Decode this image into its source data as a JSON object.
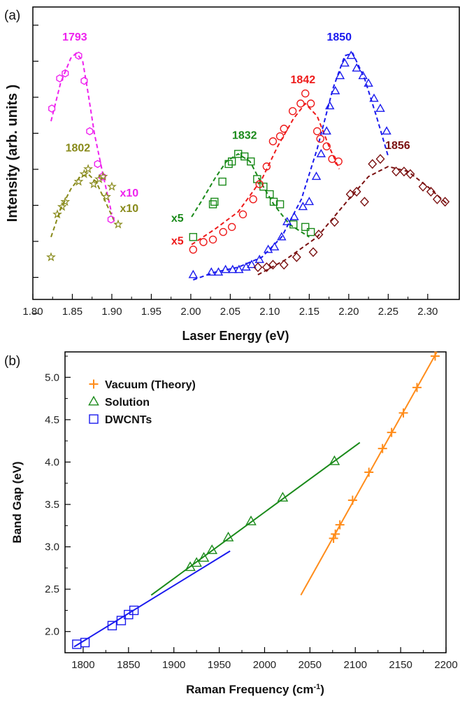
{
  "chart_data": [
    {
      "panel_label": "(a)",
      "type": "scatter",
      "xlabel": "Laser Energy (eV)",
      "ylabel": "Intensity (arb. units )",
      "xlim": [
        1.8,
        2.34
      ],
      "ylim": [
        0,
        1
      ],
      "xticks": [
        "1.80",
        "1.85",
        "1.90",
        "1.95",
        "2.00",
        "2.05",
        "2.10",
        "2.15",
        "2.20",
        "2.25",
        "2.30"
      ],
      "y_tick_labels": "none",
      "series": [
        {
          "name": "1793",
          "color": "#ee22ee",
          "marker": "hexagon",
          "points": [
            [
              1.824,
              0.68
            ],
            [
              1.834,
              0.8
            ],
            [
              1.841,
              0.82
            ],
            [
              1.858,
              0.89
            ],
            [
              1.865,
              0.79
            ],
            [
              1.872,
              0.59
            ],
            [
              1.882,
              0.46
            ],
            [
              1.888,
              0.41
            ],
            [
              1.899,
              0.24
            ]
          ],
          "fit": [
            [
              1.823,
              0.63
            ],
            [
              1.835,
              0.78
            ],
            [
              1.848,
              0.88
            ],
            [
              1.855,
              0.9
            ],
            [
              1.863,
              0.87
            ],
            [
              1.87,
              0.74
            ],
            [
              1.878,
              0.58
            ],
            [
              1.888,
              0.43
            ],
            [
              1.9,
              0.26
            ]
          ]
        },
        {
          "name": "1802",
          "color": "#888a1a",
          "marker": "star",
          "points": [
            [
              1.823,
              0.09
            ],
            [
              1.831,
              0.26
            ],
            [
              1.837,
              0.29
            ],
            [
              1.841,
              0.31
            ],
            [
              1.858,
              0.39
            ],
            [
              1.865,
              0.42
            ],
            [
              1.87,
              0.44
            ],
            [
              1.877,
              0.38
            ],
            [
              1.884,
              0.4
            ],
            [
              1.889,
              0.41
            ],
            [
              1.893,
              0.33
            ],
            [
              1.9,
              0.37
            ],
            [
              1.908,
              0.22
            ]
          ],
          "fit": [
            [
              1.823,
              0.17
            ],
            [
              1.835,
              0.28
            ],
            [
              1.848,
              0.36
            ],
            [
              1.86,
              0.41
            ],
            [
              1.87,
              0.42
            ],
            [
              1.88,
              0.39
            ],
            [
              1.892,
              0.31
            ],
            [
              1.905,
              0.22
            ]
          ]
        },
        {
          "name": "1832",
          "color": "#1a8a1a",
          "marker": "square",
          "points": [
            [
              2.003,
              0.17
            ],
            [
              2.028,
              0.3
            ],
            [
              2.03,
              0.31
            ],
            [
              2.04,
              0.39
            ],
            [
              2.048,
              0.46
            ],
            [
              2.052,
              0.47
            ],
            [
              2.06,
              0.5
            ],
            [
              2.068,
              0.49
            ],
            [
              2.076,
              0.47
            ],
            [
              2.084,
              0.4
            ],
            [
              2.092,
              0.37
            ],
            [
              2.1,
              0.34
            ],
            [
              2.105,
              0.31
            ],
            [
              2.113,
              0.3
            ],
            [
              2.13,
              0.22
            ],
            [
              2.145,
              0.21
            ],
            [
              2.152,
              0.19
            ]
          ],
          "fit": [
            [
              2.001,
              0.25
            ],
            [
              2.015,
              0.32
            ],
            [
              2.03,
              0.4
            ],
            [
              2.045,
              0.47
            ],
            [
              2.06,
              0.5
            ],
            [
              2.075,
              0.47
            ],
            [
              2.09,
              0.38
            ],
            [
              2.105,
              0.3
            ],
            [
              2.125,
              0.22
            ],
            [
              2.15,
              0.17
            ]
          ]
        },
        {
          "name": "1842",
          "color": "#ee1a1a",
          "marker": "circle",
          "points": [
            [
              2.003,
              0.12
            ],
            [
              2.016,
              0.15
            ],
            [
              2.028,
              0.16
            ],
            [
              2.041,
              0.19
            ],
            [
              2.052,
              0.21
            ],
            [
              2.066,
              0.26
            ],
            [
              2.079,
              0.32
            ],
            [
              2.087,
              0.38
            ],
            [
              2.096,
              0.45
            ],
            [
              2.104,
              0.55
            ],
            [
              2.113,
              0.57
            ],
            [
              2.118,
              0.6
            ],
            [
              2.129,
              0.67
            ],
            [
              2.139,
              0.7
            ],
            [
              2.145,
              0.74
            ],
            [
              2.152,
              0.7
            ],
            [
              2.16,
              0.59
            ],
            [
              2.164,
              0.56
            ],
            [
              2.172,
              0.53
            ],
            [
              2.179,
              0.48
            ],
            [
              2.187,
              0.47
            ]
          ],
          "fit": [
            [
              2.001,
              0.14
            ],
            [
              2.03,
              0.2
            ],
            [
              2.06,
              0.27
            ],
            [
              2.09,
              0.4
            ],
            [
              2.11,
              0.53
            ],
            [
              2.13,
              0.64
            ],
            [
              2.145,
              0.7
            ],
            [
              2.16,
              0.65
            ],
            [
              2.175,
              0.53
            ],
            [
              2.188,
              0.44
            ]
          ]
        },
        {
          "name": "1850",
          "color": "#1a1aee",
          "marker": "triangle",
          "points": [
            [
              2.003,
              0.02
            ],
            [
              2.026,
              0.03
            ],
            [
              2.035,
              0.03
            ],
            [
              2.044,
              0.04
            ],
            [
              2.053,
              0.04
            ],
            [
              2.061,
              0.04
            ],
            [
              2.07,
              0.05
            ],
            [
              2.077,
              0.06
            ],
            [
              2.087,
              0.08
            ],
            [
              2.098,
              0.12
            ],
            [
              2.106,
              0.13
            ],
            [
              2.115,
              0.17
            ],
            [
              2.122,
              0.23
            ],
            [
              2.131,
              0.25
            ],
            [
              2.142,
              0.29
            ],
            [
              2.15,
              0.31
            ],
            [
              2.159,
              0.41
            ],
            [
              2.165,
              0.5
            ],
            [
              2.172,
              0.59
            ],
            [
              2.176,
              0.69
            ],
            [
              2.183,
              0.75
            ],
            [
              2.189,
              0.81
            ],
            [
              2.195,
              0.86
            ],
            [
              2.203,
              0.89
            ],
            [
              2.21,
              0.84
            ],
            [
              2.218,
              0.81
            ],
            [
              2.225,
              0.78
            ],
            [
              2.232,
              0.72
            ],
            [
              2.24,
              0.68
            ],
            [
              2.248,
              0.59
            ]
          ],
          "fit": [
            [
              2.003,
              0.0
            ],
            [
              2.03,
              0.03
            ],
            [
              2.06,
              0.05
            ],
            [
              2.09,
              0.09
            ],
            [
              2.115,
              0.17
            ],
            [
              2.14,
              0.32
            ],
            [
              2.16,
              0.52
            ],
            [
              2.18,
              0.76
            ],
            [
              2.195,
              0.89
            ],
            [
              2.205,
              0.9
            ],
            [
              2.22,
              0.8
            ],
            [
              2.235,
              0.65
            ],
            [
              2.25,
              0.49
            ]
          ]
        },
        {
          "name": "1856",
          "color": "#7a1010",
          "marker": "diamond",
          "points": [
            [
              2.085,
              0.05
            ],
            [
              2.096,
              0.05
            ],
            [
              2.104,
              0.06
            ],
            [
              2.118,
              0.06
            ],
            [
              2.134,
              0.09
            ],
            [
              2.155,
              0.11
            ],
            [
              2.162,
              0.18
            ],
            [
              2.182,
              0.23
            ],
            [
              2.202,
              0.34
            ],
            [
              2.21,
              0.35
            ],
            [
              2.22,
              0.31
            ],
            [
              2.23,
              0.46
            ],
            [
              2.24,
              0.48
            ],
            [
              2.26,
              0.43
            ],
            [
              2.27,
              0.43
            ],
            [
              2.278,
              0.42
            ],
            [
              2.294,
              0.37
            ],
            [
              2.304,
              0.35
            ],
            [
              2.312,
              0.32
            ],
            [
              2.322,
              0.31
            ]
          ],
          "fit": [
            [
              2.085,
              0.02
            ],
            [
              2.12,
              0.08
            ],
            [
              2.16,
              0.17
            ],
            [
              2.2,
              0.32
            ],
            [
              2.225,
              0.41
            ],
            [
              2.25,
              0.45
            ],
            [
              2.275,
              0.43
            ],
            [
              2.3,
              0.37
            ],
            [
              2.325,
              0.3
            ]
          ]
        }
      ],
      "annotations": [
        {
          "text": "1793",
          "x": 1.853,
          "y": 0.95,
          "color": "#ee22ee"
        },
        {
          "text": "1802",
          "x": 1.857,
          "y": 0.51,
          "color": "#888a1a"
        },
        {
          "text": "1832",
          "x": 2.068,
          "y": 0.56,
          "color": "#1a8a1a"
        },
        {
          "text": "1842",
          "x": 2.142,
          "y": 0.78,
          "color": "#ee1a1a"
        },
        {
          "text": "1850",
          "x": 2.188,
          "y": 0.95,
          "color": "#1a1aee"
        },
        {
          "text": "1856",
          "x": 2.262,
          "y": 0.52,
          "color": "#7a1010"
        },
        {
          "text": "x10",
          "x": 1.922,
          "y": 0.33,
          "color": "#ee22ee"
        },
        {
          "text": "x10",
          "x": 1.922,
          "y": 0.27,
          "color": "#888a1a"
        },
        {
          "text": "x5",
          "x": 1.983,
          "y": 0.23,
          "color": "#1a8a1a"
        },
        {
          "text": "x5",
          "x": 1.983,
          "y": 0.14,
          "color": "#ee1a1a"
        }
      ]
    },
    {
      "panel_label": "(b)",
      "type": "scatter",
      "xlabel": "Raman Frequency (cm",
      "xlabel_sup": "-1",
      "xlabel_end": ")",
      "ylabel": "Band Gap (eV)",
      "xlim": [
        1780,
        2200
      ],
      "ylim": [
        1.75,
        5.3
      ],
      "xticks": [
        "1800",
        "1850",
        "1900",
        "1950",
        "2000",
        "2050",
        "2100",
        "2150",
        "2200"
      ],
      "yticks": [
        "2.0",
        "2.5",
        "3.0",
        "3.5",
        "4.0",
        "4.5",
        "5.0"
      ],
      "legend": {
        "position": "top-left"
      },
      "series": [
        {
          "name": "Vacuum (Theory)",
          "color": "#ff8c1a",
          "marker": "plus",
          "points": [
            [
              2076,
              3.1
            ],
            [
              2078,
              3.15
            ],
            [
              2083,
              3.26
            ],
            [
              2097,
              3.55
            ],
            [
              2115,
              3.88
            ],
            [
              2130,
              4.16
            ],
            [
              2140,
              4.35
            ],
            [
              2153,
              4.58
            ],
            [
              2168,
              4.88
            ],
            [
              2188,
              5.25
            ]
          ],
          "fit": [
            [
              2040,
              2.43
            ],
            [
              2190,
              5.3
            ]
          ]
        },
        {
          "name": "Solution",
          "color": "#1a8a1a",
          "marker": "triangle",
          "points": [
            [
              1918,
              2.76
            ],
            [
              1925,
              2.81
            ],
            [
              1933,
              2.87
            ],
            [
              1942,
              2.96
            ],
            [
              1960,
              3.11
            ],
            [
              1985,
              3.3
            ],
            [
              2020,
              3.58
            ],
            [
              2077,
              4.01
            ]
          ],
          "fit": [
            [
              1875,
              2.43
            ],
            [
              2105,
              4.23
            ]
          ]
        },
        {
          "name": "DWCNTs",
          "color": "#1a1aee",
          "marker": "square",
          "points": [
            [
              1793,
              1.85
            ],
            [
              1802,
              1.87
            ],
            [
              1832,
              2.07
            ],
            [
              1842,
              2.13
            ],
            [
              1850,
              2.2
            ],
            [
              1856,
              2.25
            ]
          ],
          "fit": [
            [
              1790,
              1.82
            ],
            [
              1962,
              2.95
            ]
          ]
        }
      ]
    }
  ]
}
